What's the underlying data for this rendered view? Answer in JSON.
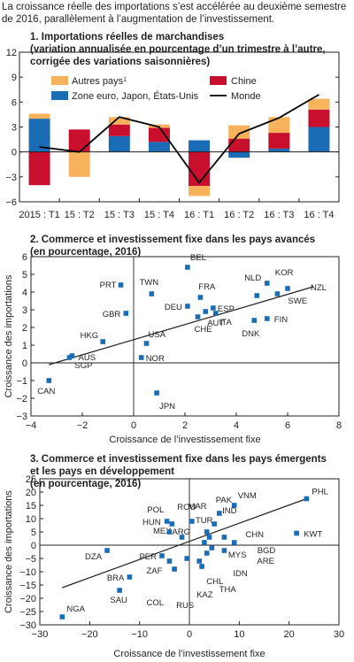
{
  "header": [
    "La croissance réelle des importations s’est accélérée au deuxième semestre",
    "de 2016, parallèlement à l’augmentation de l’investissement."
  ],
  "chart_data": [
    {
      "type": "bar",
      "title": [
        "1. Importations réelles de marchandises",
        "(variation annualisée en pourcentage d’un trimestre à l’autre,",
        "corrigée des variations saisonnières)"
      ],
      "stacked": true,
      "categories": [
        "2015 : T1",
        "15 : T2",
        "15 : T3",
        "15 : T4",
        "16 : T1",
        "16 : T2",
        "16 : T3",
        "16 : T4"
      ],
      "series": [
        {
          "name": "Zone euro, Japon, États-Unis",
          "color": "#1a6db5",
          "values": [
            4.0,
            0.0,
            1.9,
            1.2,
            1.4,
            -0.7,
            0.4,
            3.0
          ]
        },
        {
          "name": "Chine",
          "color": "#c8102e",
          "values": [
            -4.0,
            2.7,
            1.4,
            1.7,
            -4.1,
            1.6,
            1.9,
            2.1
          ]
        },
        {
          "name": "Autres pays¹",
          "color": "#f7b35b",
          "values": [
            0.6,
            -3.0,
            0.9,
            0.4,
            -1.2,
            1.6,
            1.9,
            1.3
          ]
        }
      ],
      "line": {
        "name": "Monde",
        "color": "#000000",
        "values": [
          0.6,
          0.0,
          4.2,
          3.0,
          -3.7,
          2.2,
          4.1,
          6.9
        ]
      },
      "ylim": [
        -6,
        12
      ],
      "yticks": [
        -6,
        -3,
        0,
        3,
        6,
        9,
        12
      ],
      "legend": [
        "Autres pays¹",
        "Chine",
        "Zone euro, Japon, États-Unis",
        "Monde"
      ]
    },
    {
      "type": "scatter",
      "title": [
        "2. Commerce et investissement fixe dans les pays avancés",
        "(en pourcentage, 2016)"
      ],
      "xlabel": "Croissance de l’investissement fixe",
      "ylabel": "Croissance des importations",
      "xlim": [
        -4,
        8
      ],
      "ylim": [
        -3,
        6
      ],
      "xticks": [
        -4,
        -2,
        0,
        2,
        4,
        6,
        8
      ],
      "yticks": [
        -3,
        -2,
        -1,
        0,
        1,
        2,
        3,
        4,
        5,
        6
      ],
      "color": "#1a6db5",
      "points": [
        {
          "label": "CAN",
          "x": -3.3,
          "y": -1.0
        },
        {
          "label": "AUS",
          "x": -2.5,
          "y": 0.3
        },
        {
          "label": "SGP",
          "x": -2.4,
          "y": 0.4
        },
        {
          "label": "HKG",
          "x": -1.2,
          "y": 1.2
        },
        {
          "label": "PRT",
          "x": -0.5,
          "y": 4.4
        },
        {
          "label": "GBR",
          "x": -0.3,
          "y": 2.8
        },
        {
          "label": "TWN",
          "x": 0.7,
          "y": 3.9
        },
        {
          "label": "USA",
          "x": 0.5,
          "y": 1.1
        },
        {
          "label": "NOR",
          "x": 0.3,
          "y": 0.3
        },
        {
          "label": "JPN",
          "x": 0.9,
          "y": -1.7
        },
        {
          "label": "BEL",
          "x": 2.1,
          "y": 5.4
        },
        {
          "label": "FRA",
          "x": 2.6,
          "y": 3.7
        },
        {
          "label": "DEU",
          "x": 2.1,
          "y": 3.2
        },
        {
          "label": "ESP",
          "x": 3.1,
          "y": 3.1
        },
        {
          "label": "AUT",
          "x": 2.8,
          "y": 2.9
        },
        {
          "label": "CHE",
          "x": 2.5,
          "y": 2.6
        },
        {
          "label": "ITA",
          "x": 3.2,
          "y": 2.8
        },
        {
          "label": "NLD",
          "x": 4.8,
          "y": 3.8
        },
        {
          "label": "DNK",
          "x": 4.7,
          "y": 2.4
        },
        {
          "label": "KOR",
          "x": 5.2,
          "y": 4.5
        },
        {
          "label": "FIN",
          "x": 5.2,
          "y": 2.5
        },
        {
          "label": "SWE",
          "x": 5.6,
          "y": 3.9
        },
        {
          "label": "NZL",
          "x": 6.0,
          "y": 4.2
        }
      ],
      "trendline": {
        "x": [
          -3.3,
          7.0
        ],
        "y": [
          -0.1,
          4.3
        ]
      }
    },
    {
      "type": "scatter",
      "title": [
        "3. Commerce et investissement fixe dans les pays émergents",
        "et les pays en développement",
        "(en pourcentage, 2016)"
      ],
      "xlabel": "Croissance de l’investissement fixe",
      "ylabel": "Croissance des importations",
      "xlim": [
        -30,
        30
      ],
      "ylim": [
        -30,
        25
      ],
      "xticks": [
        -30,
        -20,
        -10,
        0,
        10,
        20,
        30
      ],
      "yticks": [
        -30,
        -25,
        -20,
        -15,
        -10,
        -5,
        0,
        5,
        10,
        15,
        20,
        25
      ],
      "color": "#1a6db5",
      "points": [
        {
          "label": "NGA",
          "x": -25.5,
          "y": -27.0
        },
        {
          "label": "SAU",
          "x": -14.0,
          "y": -17.0
        },
        {
          "label": "BRA",
          "x": -12.0,
          "y": -12.0
        },
        {
          "label": "DZA",
          "x": -16.5,
          "y": -2.0
        },
        {
          "label": "PER",
          "x": -5.5,
          "y": -4.0
        },
        {
          "label": "MEX",
          "x": -1.5,
          "y": 3.0
        },
        {
          "label": "HUN",
          "x": -4.5,
          "y": 9.0
        },
        {
          "label": "POL",
          "x": -3.5,
          "y": 8.0
        },
        {
          "label": "ARG",
          "x": -4.0,
          "y": 5.0
        },
        {
          "label": "ZAF",
          "x": -4.0,
          "y": -6.0
        },
        {
          "label": "COL",
          "x": -3.0,
          "y": -9.0
        },
        {
          "label": "RUS",
          "x": -0.5,
          "y": -5.0
        },
        {
          "label": "ROU",
          "x": 0.5,
          "y": 9.0
        },
        {
          "label": "CHL",
          "x": 2.0,
          "y": -6.0
        },
        {
          "label": "KAZ",
          "x": 2.5,
          "y": -8.0
        },
        {
          "label": "MAR",
          "x": 4.0,
          "y": 3.0
        },
        {
          "label": "TUR",
          "x": 3.5,
          "y": 5.0
        },
        {
          "label": "PAK",
          "x": 6.0,
          "y": 12.0
        },
        {
          "label": "VNM",
          "x": 9.0,
          "y": 15.0
        },
        {
          "label": "IND",
          "x": 5.0,
          "y": 8.0
        },
        {
          "label": "CHN",
          "x": 7.0,
          "y": 3.0
        },
        {
          "label": "MYS",
          "x": 3.0,
          "y": 1.0
        },
        {
          "label": "IDN",
          "x": 4.5,
          "y": -1.0
        },
        {
          "label": "THA",
          "x": 3.5,
          "y": -3.0
        },
        {
          "label": "ARE",
          "x": 7.0,
          "y": -2.0
        },
        {
          "label": "BGD",
          "x": 9.0,
          "y": 1.0
        },
        {
          "label": "KWT",
          "x": 21.5,
          "y": 4.5
        },
        {
          "label": "PHL",
          "x": 23.5,
          "y": 17.5
        }
      ],
      "trendline": {
        "x": [
          -25.5,
          23.5
        ],
        "y": [
          -16.0,
          17.5
        ]
      }
    }
  ]
}
